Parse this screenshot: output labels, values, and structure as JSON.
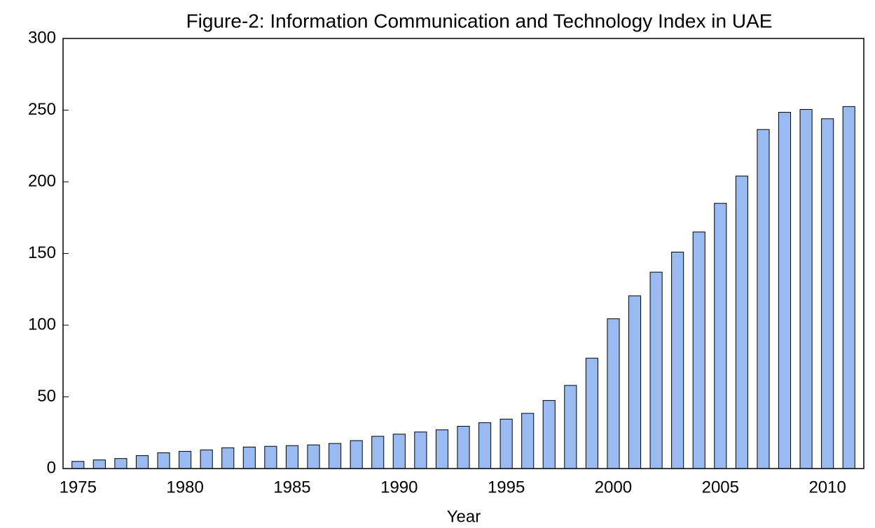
{
  "chart_data": {
    "type": "bar",
    "title": "Figure-2: Information Communication and Technology Index in UAE",
    "x_label": "Year",
    "categories": [
      "1975",
      null,
      null,
      null,
      null,
      "1980",
      null,
      null,
      null,
      null,
      "1985",
      null,
      null,
      null,
      null,
      "1990",
      null,
      null,
      null,
      null,
      "1995",
      null,
      null,
      null,
      null,
      "2000",
      null,
      null,
      null,
      null,
      "2005",
      null,
      null,
      null,
      null,
      "2010",
      null
    ],
    "values": [
      5,
      6,
      7,
      9,
      11,
      12,
      13,
      14.5,
      15,
      15.5,
      16,
      16.5,
      17.5,
      19.5,
      22.5,
      24,
      25.5,
      27,
      29.5,
      32,
      34.5,
      38.5,
      47.5,
      58,
      77,
      104.5,
      120.5,
      137,
      151,
      165,
      185,
      204,
      236.5,
      248.5,
      250.5,
      244,
      252.5
    ],
    "color": "#99bbf2",
    "ylim": [
      0,
      300
    ],
    "yticks": [
      0,
      50,
      100,
      150,
      200,
      250,
      300
    ],
    "grid": false
  }
}
